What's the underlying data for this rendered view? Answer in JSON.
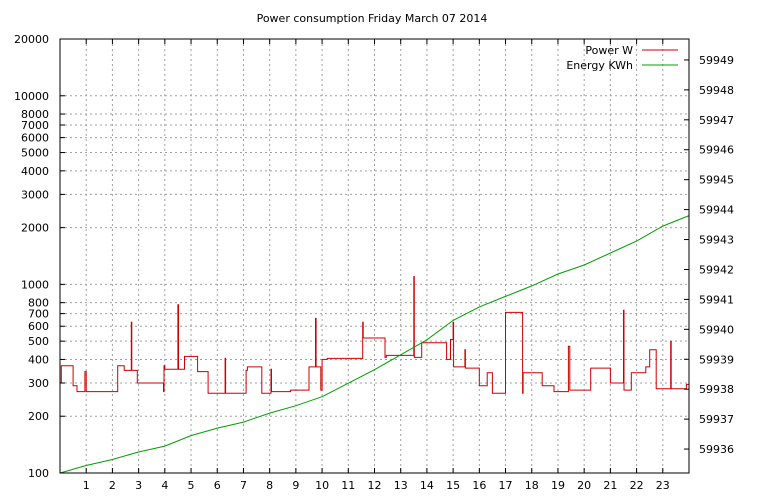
{
  "chart_data": {
    "type": "line",
    "title": "Power consumption Friday March 07 2014",
    "xlabel": "",
    "ylabel": "",
    "y2label": "",
    "grid": true,
    "legend_position": "top-right",
    "xlim": [
      0,
      24
    ],
    "ylim": [
      100,
      20000
    ],
    "y_scale": "log",
    "y2lim": [
      59935.2,
      59949.7
    ],
    "x_ticks": [
      1,
      2,
      3,
      4,
      5,
      6,
      7,
      8,
      9,
      10,
      11,
      12,
      13,
      14,
      15,
      16,
      17,
      18,
      19,
      20,
      21,
      22,
      23
    ],
    "y_ticks": [
      100,
      200,
      300,
      400,
      500,
      600,
      700,
      800,
      1000,
      2000,
      3000,
      4000,
      5000,
      6000,
      7000,
      8000,
      10000,
      20000
    ],
    "y2_ticks": [
      59936,
      59937,
      59938,
      59939,
      59940,
      59941,
      59942,
      59943,
      59944,
      59945,
      59946,
      59947,
      59948,
      59949
    ],
    "series": [
      {
        "name": "Power W",
        "color": "#cc0000",
        "axis": "left",
        "x": [
          0,
          0.05,
          0.05,
          0.5,
          0.5,
          0.65,
          0.65,
          0.95,
          0.95,
          1.0,
          1.0,
          1.02,
          1.02,
          2.2,
          2.2,
          2.45,
          2.45,
          2.72,
          2.72,
          2.74,
          2.74,
          2.95,
          2.95,
          3.95,
          3.95,
          3.97,
          3.97,
          4.0,
          4.0,
          4.5,
          4.5,
          4.52,
          4.52,
          4.75,
          4.75,
          5.25,
          5.25,
          5.65,
          5.65,
          6.3,
          6.3,
          6.32,
          6.32,
          7.1,
          7.1,
          7.15,
          7.15,
          7.7,
          7.7,
          8.05,
          8.05,
          8.07,
          8.07,
          8.8,
          8.8,
          9.5,
          9.5,
          9.75,
          9.75,
          9.77,
          9.77,
          9.95,
          9.95,
          10.0,
          10.0,
          10.2,
          10.2,
          11.55,
          11.55,
          11.57,
          11.57,
          12.4,
          12.4,
          12.45,
          12.45,
          13.5,
          13.5,
          13.52,
          13.52,
          13.8,
          13.8,
          14.75,
          14.75,
          14.9,
          14.9,
          15.0,
          15.0,
          15.02,
          15.02,
          15.45,
          15.45,
          15.47,
          15.47,
          16.0,
          16.0,
          16.3,
          16.3,
          16.5,
          16.5,
          17.0,
          17.0,
          17.65,
          17.65,
          17.67,
          17.67,
          18.4,
          18.4,
          18.85,
          18.85,
          19.4,
          19.4,
          19.45,
          19.45,
          20.25,
          20.25,
          21.0,
          21.0,
          21.5,
          21.5,
          21.52,
          21.52,
          21.8,
          21.8,
          22.35,
          22.35,
          22.5,
          22.5,
          22.75,
          22.75,
          23.3,
          23.3,
          23.32,
          23.32,
          23.9,
          23.9,
          24.0
        ],
        "y": [
          300,
          300,
          370,
          370,
          290,
          290,
          270,
          270,
          345,
          345,
          270,
          270,
          270,
          270,
          370,
          370,
          350,
          350,
          630,
          630,
          350,
          350,
          300,
          300,
          270,
          270,
          370,
          370,
          355,
          355,
          780,
          780,
          355,
          355,
          415,
          415,
          345,
          345,
          265,
          265,
          405,
          405,
          265,
          265,
          350,
          350,
          365,
          365,
          265,
          265,
          355,
          355,
          270,
          270,
          275,
          275,
          365,
          365,
          660,
          660,
          365,
          365,
          275,
          275,
          400,
          400,
          405,
          405,
          630,
          630,
          520,
          520,
          410,
          410,
          420,
          420,
          1100,
          1100,
          410,
          410,
          490,
          490,
          400,
          400,
          510,
          510,
          630,
          630,
          365,
          365,
          450,
          450,
          360,
          360,
          290,
          290,
          340,
          340,
          265,
          265,
          710,
          710,
          265,
          265,
          340,
          340,
          290,
          290,
          270,
          270,
          470,
          470,
          275,
          275,
          360,
          360,
          300,
          300,
          730,
          730,
          275,
          275,
          340,
          340,
          365,
          365,
          450,
          450,
          280,
          280,
          500,
          500,
          280,
          280,
          295,
          295
        ]
      },
      {
        "name": "Energy KWh",
        "color": "#00a000",
        "axis": "right",
        "x": [
          0,
          1,
          2,
          3,
          4,
          5,
          6,
          7,
          8,
          9,
          10,
          11,
          12,
          13,
          14,
          15,
          16,
          17,
          18,
          19,
          20,
          21,
          22,
          23,
          24
        ],
        "y": [
          59935.2,
          59935.45,
          59935.65,
          59935.9,
          59936.1,
          59936.45,
          59936.7,
          59936.9,
          59937.2,
          59937.45,
          59937.75,
          59938.2,
          59938.65,
          59939.15,
          59939.65,
          59940.3,
          59940.75,
          59941.1,
          59941.45,
          59941.85,
          59942.15,
          59942.55,
          59942.95,
          59943.45,
          59943.8
        ]
      }
    ]
  }
}
